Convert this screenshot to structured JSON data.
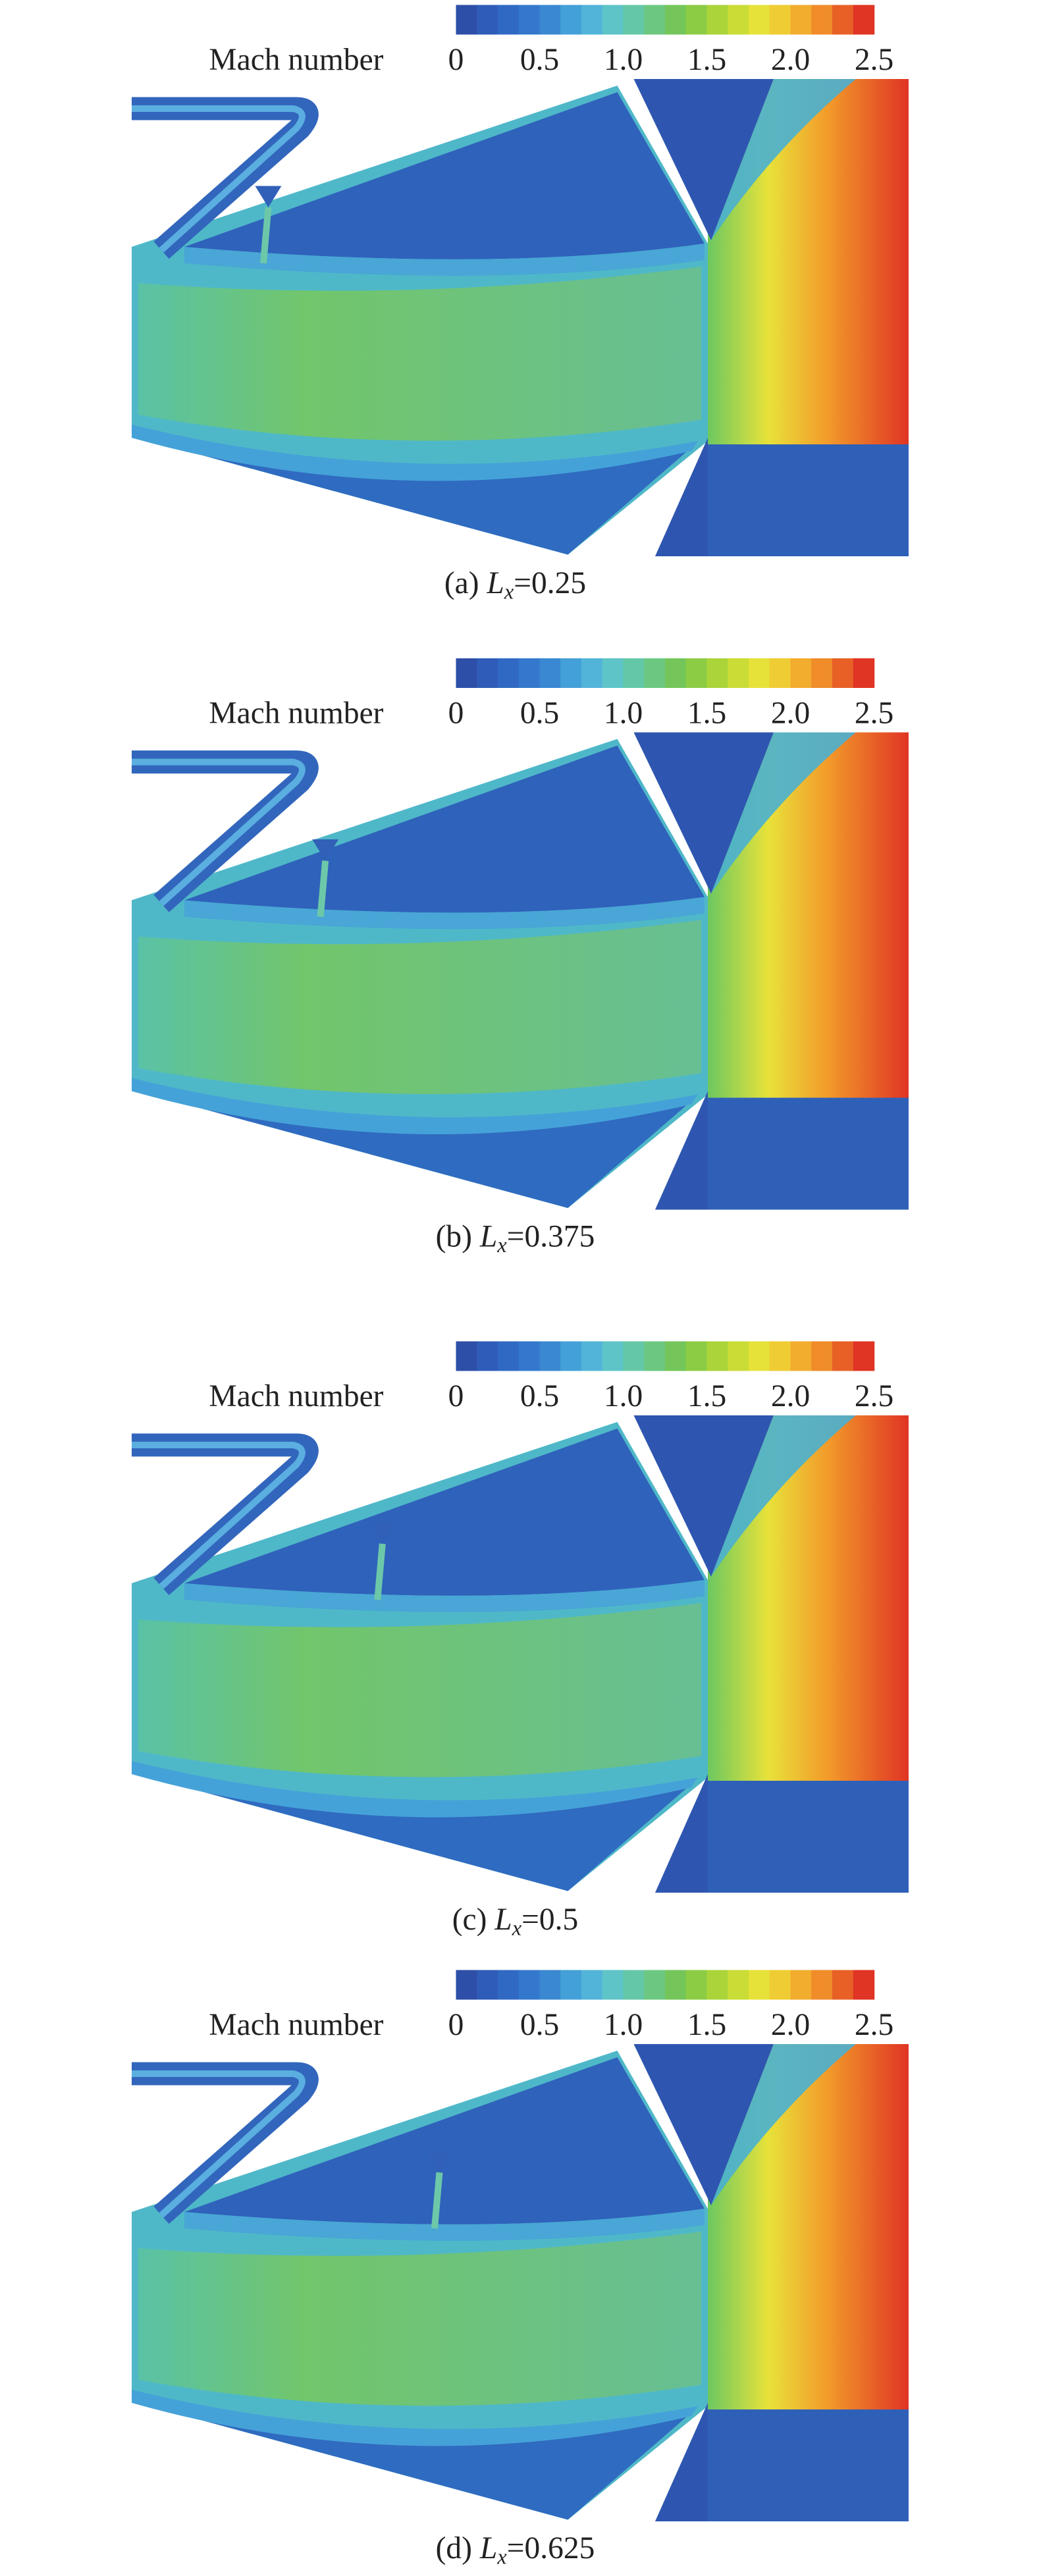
{
  "panels": [
    {
      "colorbar": {
        "label": "Mach number",
        "lim": [
          0,
          2.5
        ],
        "ticks": [
          0,
          0.5,
          {
            "value": 1,
            "label": "1.0"
          },
          1.5,
          {
            "value": 2,
            "label": "2.0"
          },
          2.5
        ]
      },
      "injector_x": 0.25,
      "caption": {
        "prefix": "(a) ",
        "variable": "L",
        "subscript": "x",
        "suffix": "=0.25"
      }
    },
    {
      "colorbar": {
        "label": "Mach number",
        "lim": [
          0,
          2.5
        ],
        "ticks": [
          0,
          0.5,
          {
            "value": 1,
            "label": "1.0"
          },
          1.5,
          {
            "value": 2,
            "label": "2.0"
          },
          2.5
        ]
      },
      "injector_x": 0.375,
      "caption": {
        "prefix": "(b) ",
        "variable": "L",
        "subscript": "x",
        "suffix": "=0.375"
      }
    },
    {
      "colorbar": {
        "label": "Mach number",
        "lim": [
          0,
          2.5
        ],
        "ticks": [
          0,
          0.5,
          {
            "value": 1,
            "label": "1.0"
          },
          1.5,
          {
            "value": 2,
            "label": "2.0"
          },
          2.5
        ]
      },
      "injector_x": 0.5,
      "caption": {
        "prefix": "(c) ",
        "variable": "L",
        "subscript": "x",
        "suffix": "=0.5"
      }
    },
    {
      "colorbar": {
        "label": "Mach number",
        "lim": [
          0,
          2.5
        ],
        "ticks": [
          0,
          0.5,
          {
            "value": 1,
            "label": "1.0"
          },
          1.5,
          {
            "value": 2,
            "label": "2.0"
          },
          2.5
        ]
      },
      "injector_x": 0.625,
      "caption": {
        "prefix": "(d) ",
        "variable": "L",
        "subscript": "x",
        "suffix": "=0.625"
      }
    }
  ]
}
